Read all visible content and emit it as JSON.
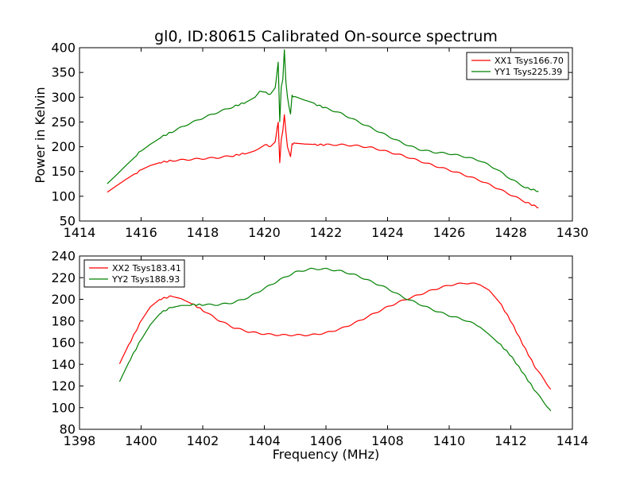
{
  "figure": {
    "title": "gl0, ID:80615 Calibrated On-source spectrum",
    "xlabel": "Frequency (MHz)"
  },
  "chart_data": [
    {
      "type": "line",
      "title": "gl0, ID:80615 Calibrated On-source spectrum",
      "xlabel": "",
      "ylabel": "Power in Kelvin",
      "xlim": [
        1414,
        1430
      ],
      "ylim": [
        50,
        400
      ],
      "xticks": [
        1414,
        1416,
        1418,
        1420,
        1422,
        1424,
        1426,
        1428,
        1430
      ],
      "yticks": [
        50,
        100,
        150,
        200,
        250,
        300,
        350,
        400
      ],
      "grid": false,
      "legend_position": "top-right",
      "series": [
        {
          "name": "XX1 Tsys166.70",
          "color": "#ff0000",
          "x": [
            1414.9,
            1415.2,
            1415.5,
            1415.8,
            1416.0,
            1416.3,
            1416.6,
            1417.0,
            1417.5,
            1418.0,
            1418.5,
            1419.0,
            1419.4,
            1419.7,
            1419.85,
            1420.0,
            1420.2,
            1420.35,
            1420.45,
            1420.5,
            1420.55,
            1420.6,
            1420.65,
            1420.7,
            1420.75,
            1420.8,
            1420.85,
            1420.9,
            1421.0,
            1421.3,
            1421.6,
            1422.0,
            1422.5,
            1423.0,
            1423.5,
            1424.0,
            1424.5,
            1425.0,
            1425.5,
            1426.0,
            1426.5,
            1427.0,
            1427.5,
            1428.0,
            1428.5,
            1428.9
          ],
          "y": [
            107,
            120,
            133,
            145,
            153,
            162,
            168,
            172,
            174,
            176,
            178,
            182,
            187,
            193,
            198,
            204,
            201,
            210,
            250,
            168,
            215,
            232,
            265,
            230,
            200,
            190,
            180,
            206,
            207,
            205,
            204,
            204,
            204,
            202,
            198,
            190,
            182,
            172,
            162,
            153,
            143,
            132,
            118,
            103,
            88,
            77
          ]
        },
        {
          "name": "YY1 Tsys225.39",
          "color": "#008000",
          "x": [
            1414.9,
            1415.2,
            1415.5,
            1415.8,
            1416.0,
            1416.3,
            1416.6,
            1417.0,
            1417.5,
            1418.0,
            1418.5,
            1419.0,
            1419.4,
            1419.7,
            1419.85,
            1420.0,
            1420.2,
            1420.35,
            1420.45,
            1420.5,
            1420.55,
            1420.6,
            1420.65,
            1420.7,
            1420.75,
            1420.8,
            1420.85,
            1420.9,
            1421.0,
            1421.3,
            1421.6,
            1422.0,
            1422.5,
            1423.0,
            1423.5,
            1424.0,
            1424.5,
            1425.0,
            1425.5,
            1426.0,
            1426.5,
            1427.0,
            1427.5,
            1428.0,
            1428.5,
            1428.9
          ],
          "y": [
            125,
            143,
            162,
            180,
            192,
            206,
            218,
            230,
            245,
            258,
            270,
            281,
            290,
            300,
            312,
            310,
            306,
            318,
            370,
            250,
            320,
            335,
            395,
            330,
            300,
            280,
            265,
            303,
            300,
            293,
            287,
            278,
            267,
            252,
            237,
            222,
            207,
            195,
            189,
            186,
            180,
            172,
            156,
            135,
            117,
            110
          ]
        }
      ]
    },
    {
      "type": "line",
      "title": "",
      "xlabel": "Frequency (MHz)",
      "ylabel": "",
      "xlim": [
        1398,
        1414
      ],
      "ylim": [
        80,
        240
      ],
      "xticks": [
        1398,
        1400,
        1402,
        1404,
        1406,
        1408,
        1410,
        1412,
        1414
      ],
      "yticks": [
        80,
        100,
        120,
        140,
        160,
        180,
        200,
        220,
        240
      ],
      "grid": false,
      "legend_position": "top-left",
      "series": [
        {
          "name": "XX2 Tsys183.41",
          "color": "#ff0000",
          "x": [
            1399.3,
            1399.6,
            1400.0,
            1400.3,
            1400.6,
            1401.0,
            1401.3,
            1401.6,
            1402.0,
            1402.5,
            1403.0,
            1403.5,
            1404.0,
            1404.5,
            1405.0,
            1405.5,
            1406.0,
            1406.5,
            1407.0,
            1407.5,
            1408.0,
            1408.5,
            1409.0,
            1409.5,
            1410.0,
            1410.5,
            1411.0,
            1411.3,
            1411.6,
            1412.0,
            1412.4,
            1412.8,
            1413.3
          ],
          "y": [
            140,
            158,
            180,
            193,
            200,
            203,
            201,
            197,
            190,
            181,
            174,
            170,
            168,
            167,
            167,
            167,
            169,
            173,
            179,
            186,
            193,
            199,
            204,
            209,
            213,
            215,
            214,
            209,
            199,
            180,
            158,
            137,
            117
          ]
        },
        {
          "name": "YY2 Tsys188.93",
          "color": "#008000",
          "x": [
            1399.3,
            1399.6,
            1400.0,
            1400.3,
            1400.6,
            1401.0,
            1401.3,
            1401.6,
            1402.0,
            1402.5,
            1403.0,
            1403.5,
            1404.0,
            1404.5,
            1405.0,
            1405.5,
            1406.0,
            1406.5,
            1407.0,
            1407.5,
            1408.0,
            1408.5,
            1409.0,
            1409.5,
            1410.0,
            1410.5,
            1411.0,
            1411.3,
            1411.6,
            1412.0,
            1412.4,
            1412.8,
            1413.3
          ],
          "y": [
            124,
            142,
            163,
            177,
            187,
            193,
            195,
            195,
            195,
            195,
            197,
            202,
            210,
            218,
            225,
            228,
            228,
            226,
            222,
            216,
            210,
            202,
            196,
            190,
            185,
            181,
            175,
            168,
            160,
            148,
            132,
            115,
            97
          ]
        }
      ]
    }
  ]
}
